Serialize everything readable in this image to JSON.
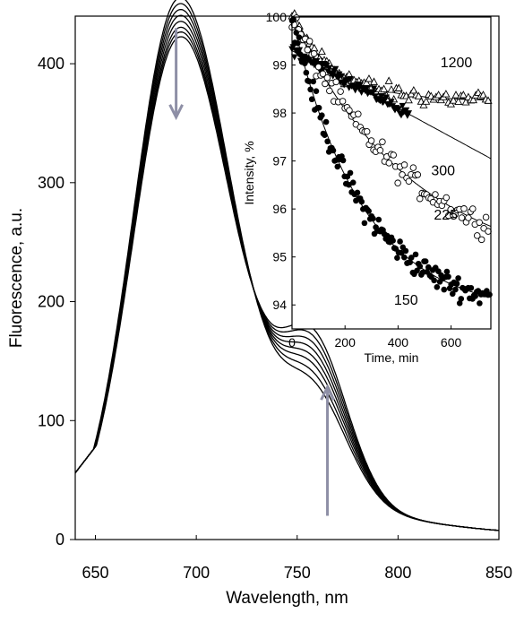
{
  "chart_data": [
    {
      "type": "line",
      "xlabel": "Wavelength, nm",
      "ylabel": "Fluorescence, a.u.",
      "xlim": [
        640,
        850
      ],
      "ylim": [
        0,
        440
      ],
      "xticks": [
        650,
        700,
        750,
        800,
        850
      ],
      "yticks": [
        0,
        100,
        200,
        300,
        400
      ],
      "peak_x": 690,
      "peak_heights": [
        426,
        421,
        416,
        411,
        406,
        401,
        397,
        393
      ],
      "shoulder_heights": [
        84,
        91,
        98,
        104,
        110,
        116,
        122,
        128
      ],
      "x_start_value": 56,
      "annotations": [
        {
          "type": "arrow",
          "direction": "down",
          "x": 690,
          "y_from": 430,
          "y_to": 355
        },
        {
          "type": "arrow",
          "direction": "up",
          "x": 765,
          "y_from": 20,
          "y_to": 128
        }
      ]
    },
    {
      "type": "scatter",
      "placement": "inset",
      "xlabel": "Time, min",
      "ylabel": "Intensity, %",
      "xlim": [
        0,
        750
      ],
      "ylim": [
        93.5,
        100
      ],
      "xticks": [
        0,
        200,
        400,
        600
      ],
      "yticks": [
        94,
        95,
        96,
        97,
        98,
        99,
        100
      ],
      "series": [
        {
          "name": "1200",
          "marker": "triangle-open",
          "fit_end": 98.25,
          "rate": 0.006,
          "x_max": 740,
          "count": 80
        },
        {
          "name": "300",
          "marker": "triangle-down-filled",
          "fit_end": 97.05,
          "rate": 0.0022,
          "x_max": 440,
          "count": 95
        },
        {
          "name": "225",
          "marker": "circle-open",
          "fit_end": 94.6,
          "rate": 0.0022,
          "x_max": 740,
          "count": 90
        },
        {
          "name": "150",
          "marker": "circle-filled",
          "fit_end": 93.8,
          "rate": 0.0038,
          "x_max": 745,
          "count": 140
        }
      ],
      "series_labels": [
        {
          "text": "1200",
          "x": 620,
          "y": 98.95
        },
        {
          "text": "300",
          "x": 570,
          "y": 96.7
        },
        {
          "text": "225",
          "x": 580,
          "y": 95.78
        },
        {
          "text": "150",
          "x": 430,
          "y": 94.0
        }
      ]
    }
  ]
}
